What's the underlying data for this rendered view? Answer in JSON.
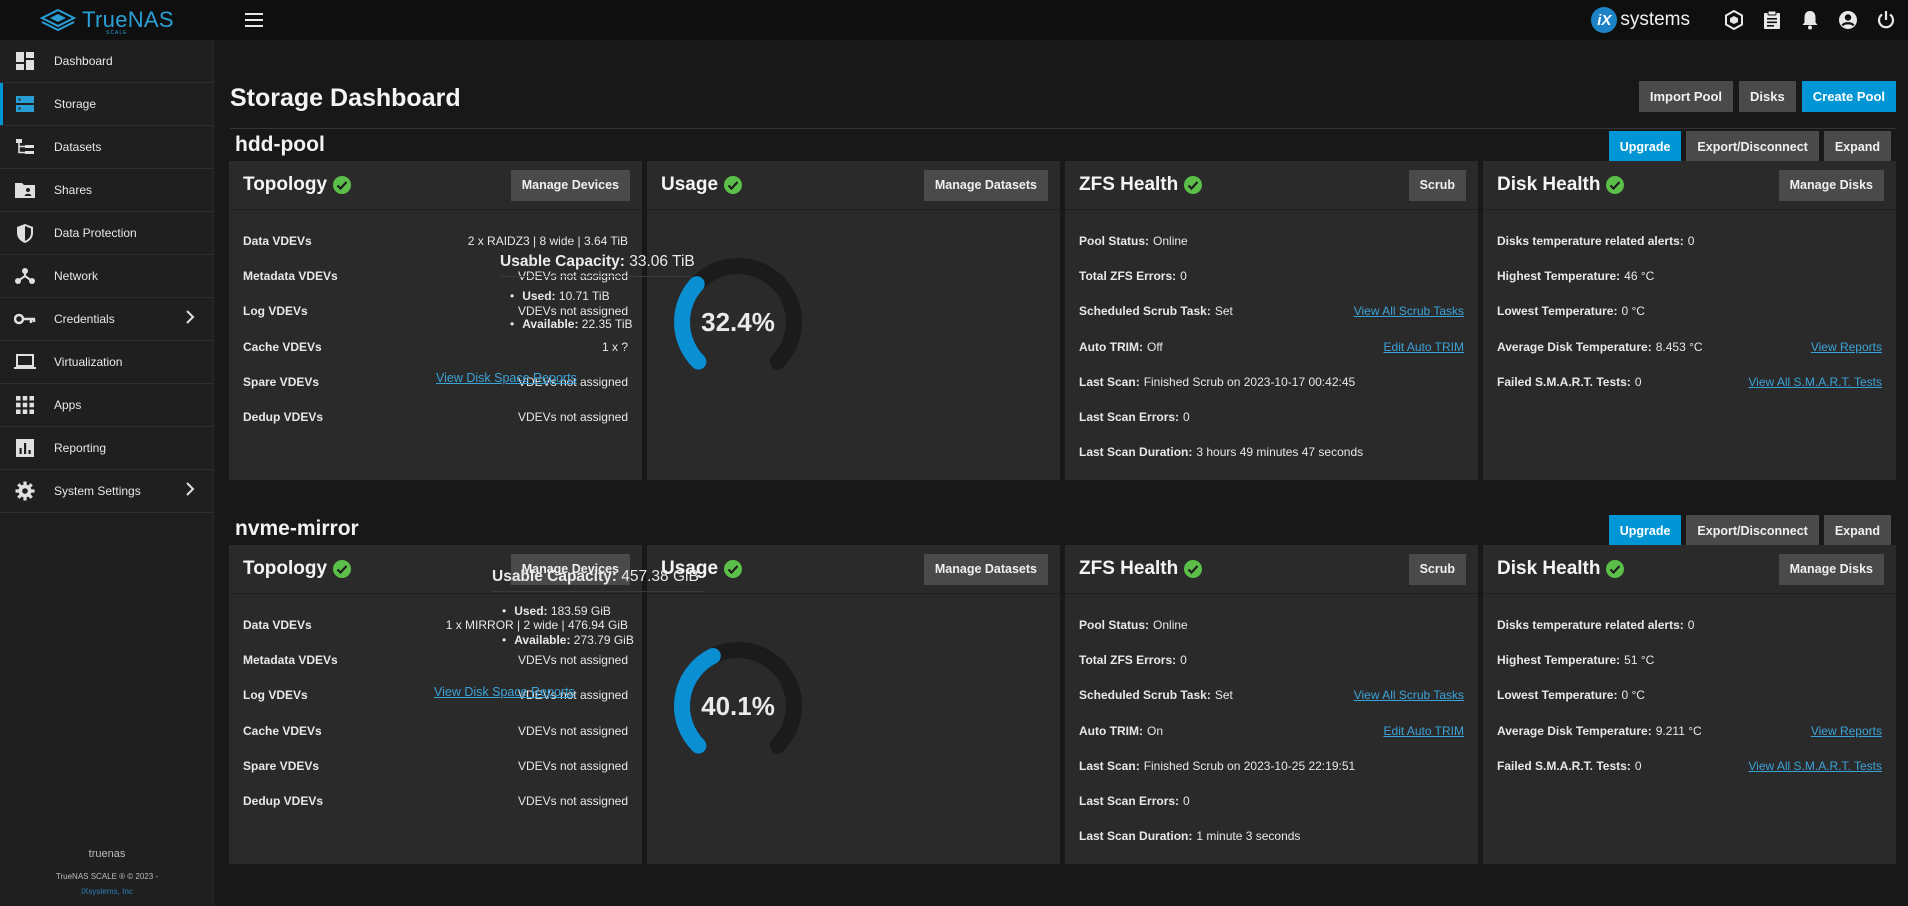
{
  "brand": {
    "name": "TrueNAS",
    "sub": "SCALE"
  },
  "topbar": {
    "ix_letter": "iX",
    "ix_text": "systems"
  },
  "sidebar": {
    "items": [
      {
        "label": "Dashboard"
      },
      {
        "label": "Storage"
      },
      {
        "label": "Datasets"
      },
      {
        "label": "Shares"
      },
      {
        "label": "Data Protection"
      },
      {
        "label": "Network"
      },
      {
        "label": "Credentials"
      },
      {
        "label": "Virtualization"
      },
      {
        "label": "Apps"
      },
      {
        "label": "Reporting"
      },
      {
        "label": "System Settings"
      }
    ],
    "hostname": "truenas",
    "version": "TrueNAS SCALE ® © 2023 -",
    "company": "iXsystems, Inc"
  },
  "page": {
    "title": "Storage Dashboard",
    "import_pool": "Import Pool",
    "disks": "Disks",
    "create_pool": "Create Pool"
  },
  "labels": {
    "upgrade": "Upgrade",
    "export": "Export/Disconnect",
    "expand": "Expand",
    "topology": "Topology",
    "usage": "Usage",
    "zfs_health": "ZFS Health",
    "disk_health": "Disk Health",
    "manage_devices": "Manage Devices",
    "manage_datasets": "Manage Datasets",
    "scrub": "Scrub",
    "manage_disks": "Manage Disks",
    "data_vdevs": "Data VDEVs",
    "metadata_vdevs": "Metadata VDEVs",
    "log_vdevs": "Log VDEVs",
    "cache_vdevs": "Cache VDEVs",
    "spare_vdevs": "Spare VDEVs",
    "dedup_vdevs": "Dedup VDEVs",
    "usable_capacity": "Usable Capacity:",
    "used": "Used:",
    "available": "Available:",
    "view_disk_space": "View Disk Space Reports",
    "pool_status": "Pool Status:",
    "total_zfs_errors": "Total ZFS Errors:",
    "scheduled_scrub": "Scheduled Scrub Task:",
    "view_all_scrub": "View All Scrub Tasks",
    "auto_trim": "Auto TRIM:",
    "edit_auto_trim": "Edit Auto TRIM",
    "last_scan": "Last Scan:",
    "last_scan_errors": "Last Scan Errors:",
    "last_scan_duration": "Last Scan Duration:",
    "temp_alerts": "Disks temperature related alerts:",
    "highest_temp": "Highest Temperature:",
    "lowest_temp": "Lowest Temperature:",
    "avg_temp": "Average Disk Temperature:",
    "view_reports": "View Reports",
    "failed_smart": "Failed S.M.A.R.T. Tests:",
    "view_all_smart": "View All S.M.A.R.T. Tests"
  },
  "pools": [
    {
      "name": "hdd-pool",
      "topology": {
        "data": "2 x RAIDZ3 | 8 wide | 3.64 TiB",
        "metadata": "VDEVs not assigned",
        "log": "VDEVs not assigned",
        "cache": "1 x ?",
        "spare": "VDEVs not assigned",
        "dedup": "VDEVs not assigned"
      },
      "usage": {
        "percent_label": "32.4%",
        "percent": 32.4,
        "capacity": "33.06 TiB",
        "used": "10.71 TiB",
        "available": "22.35 TiB"
      },
      "zfs": {
        "status": "Online",
        "errors": "0",
        "scrub_task": "Set",
        "auto_trim": "Off",
        "last_scan": "Finished Scrub on 2023-10-17 00:42:45",
        "last_scan_errors": "0",
        "last_scan_duration": "3 hours 49 minutes 47 seconds"
      },
      "disk": {
        "alerts": "0",
        "highest": "46 °C",
        "lowest": "0 °C",
        "average": "8.453 °C",
        "failed": "0"
      }
    },
    {
      "name": "nvme-mirror",
      "topology": {
        "data": "1 x MIRROR | 2 wide | 476.94 GiB",
        "metadata": "VDEVs not assigned",
        "log": "VDEVs not assigned",
        "cache": "VDEVs not assigned",
        "spare": "VDEVs not assigned",
        "dedup": "VDEVs not assigned"
      },
      "usage": {
        "percent_label": "40.1%",
        "percent": 40.1,
        "capacity": "457.38 GiB",
        "used": "183.59 GiB",
        "available": "273.79 GiB"
      },
      "zfs": {
        "status": "Online",
        "errors": "0",
        "scrub_task": "Set",
        "auto_trim": "On",
        "last_scan": "Finished Scrub on 2023-10-25 22:19:51",
        "last_scan_errors": "0",
        "last_scan_duration": "1 minute 3 seconds"
      },
      "disk": {
        "alerts": "0",
        "highest": "51 °C",
        "lowest": "0 °C",
        "average": "9.211 °C",
        "failed": "0"
      }
    }
  ],
  "colors": {
    "accent": "#0095d5",
    "ok": "#5bbf4a",
    "link": "#3ca3d8"
  }
}
